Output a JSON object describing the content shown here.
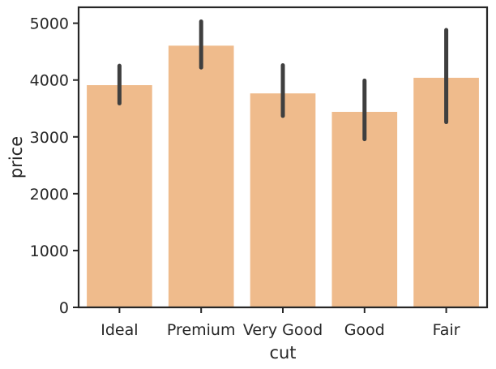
{
  "chart_data": {
    "type": "bar",
    "categories": [
      "Ideal",
      "Premium",
      "Very Good",
      "Good",
      "Fair"
    ],
    "values": [
      3910,
      4605,
      3765,
      3440,
      4040
    ],
    "error_bars": [
      [
        3590,
        4250
      ],
      [
        4220,
        5030
      ],
      [
        3370,
        4260
      ],
      [
        2960,
        3990
      ],
      [
        3260,
        4880
      ]
    ],
    "xlabel": "cut",
    "ylabel": "price",
    "ylim": [
      0,
      5280
    ],
    "yticks": [
      0,
      1000,
      2000,
      3000,
      4000,
      5000
    ],
    "grid": false,
    "colors": {
      "bar": "#efbb8c",
      "error_bar": "#3f3f3f",
      "axis": "#262626"
    }
  }
}
